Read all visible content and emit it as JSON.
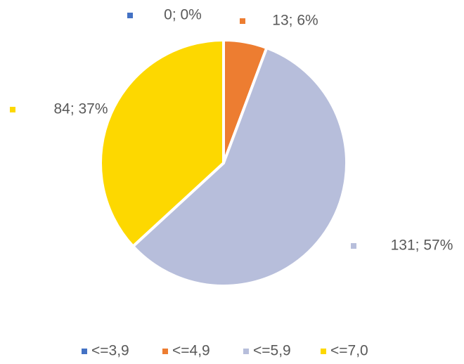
{
  "chart_data": {
    "type": "pie",
    "categories": [
      "<=3,9",
      "<=4,9",
      "<=5,9",
      "<=7,0"
    ],
    "values": [
      0,
      13,
      131,
      84
    ],
    "value_labels": [
      "0; 0%",
      "13; 6%",
      "131; 57%",
      "84; 37%"
    ],
    "colors": [
      "#4472c4",
      "#ed7d31",
      "#b7bedb",
      "#fdd800"
    ],
    "legend": "bottom"
  }
}
